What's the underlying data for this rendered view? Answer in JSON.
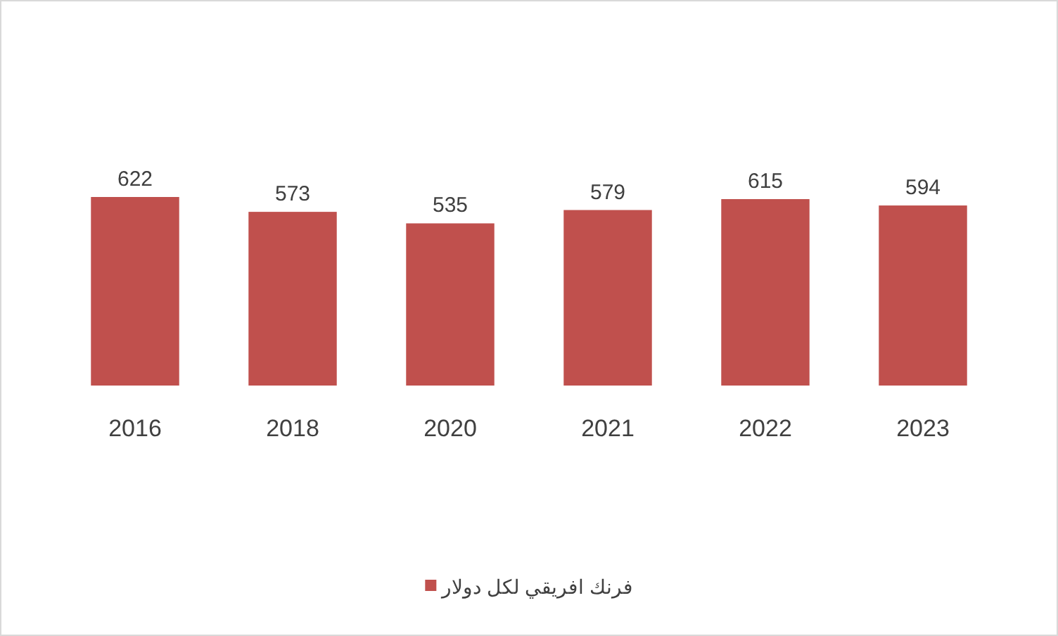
{
  "chart_data": {
    "type": "bar",
    "categories": [
      "2016",
      "2018",
      "2020",
      "2021",
      "2022",
      "2023"
    ],
    "series": [
      {
        "name": "فرنك افريقي لكل دولار",
        "color": "#c0504d",
        "values": [
          622,
          573,
          535,
          579,
          615,
          594
        ]
      }
    ],
    "data_labels": true,
    "tick_labels": "x",
    "grid": false,
    "legend": "bottom"
  }
}
